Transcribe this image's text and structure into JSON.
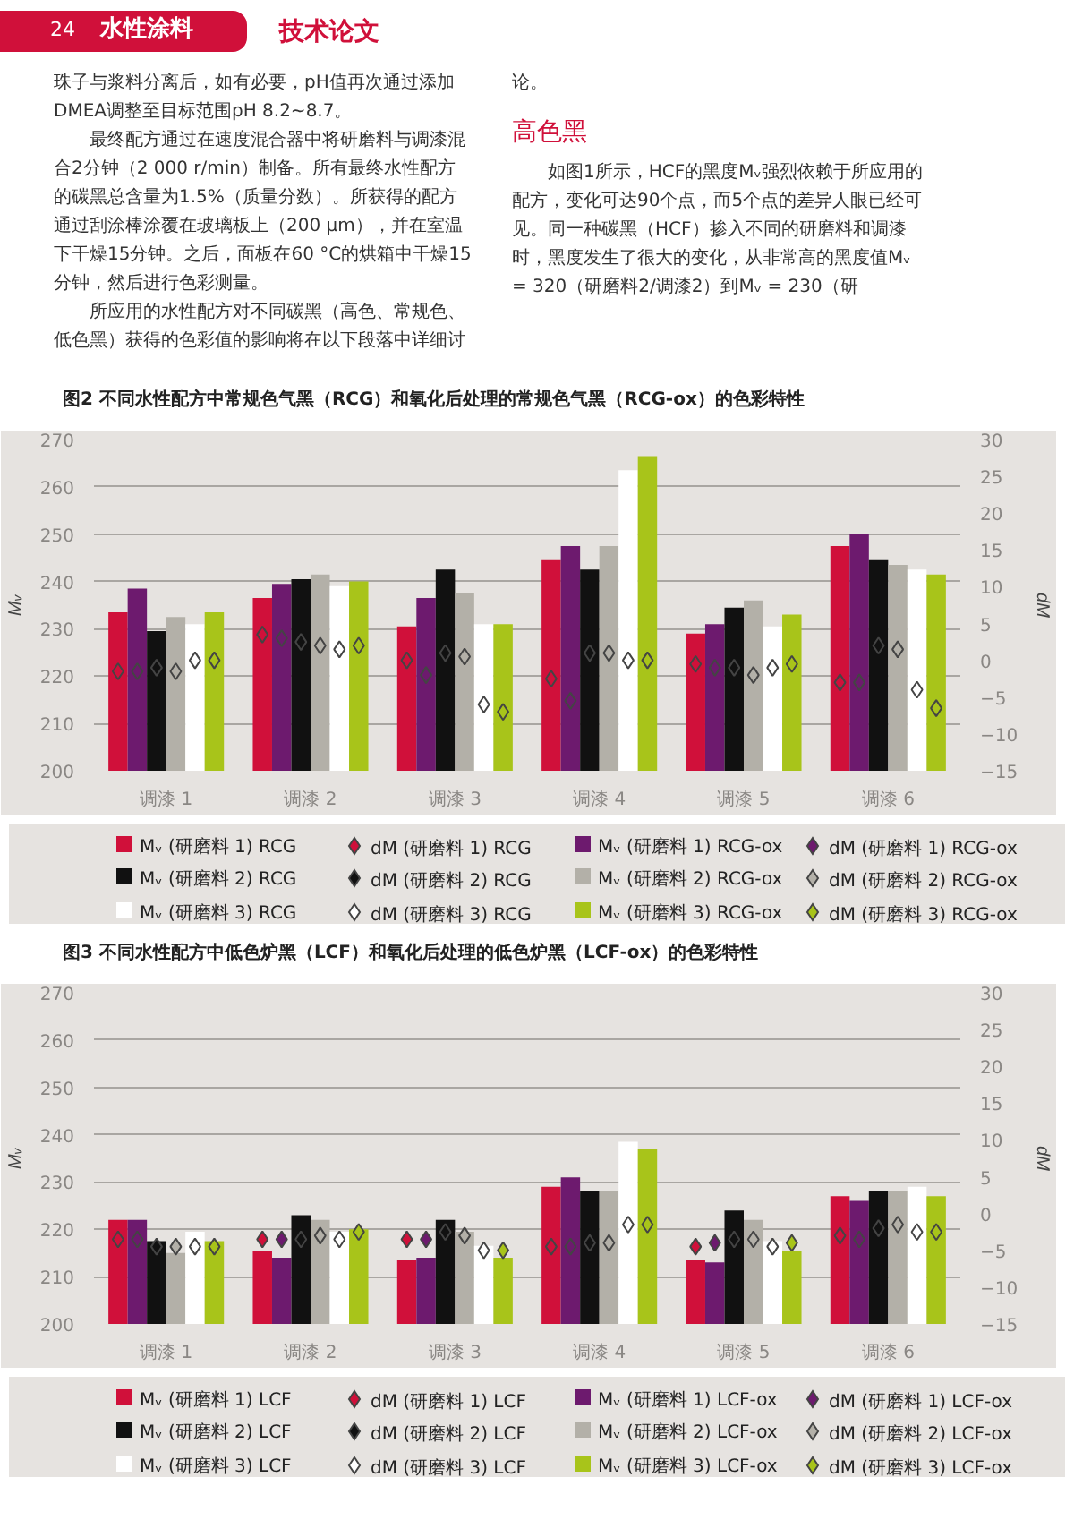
{
  "chart_data": [
    {
      "type": "bar",
      "title": "图2 不同水性配方中常规色气黑（RCG）和氧化后处理的常规色气黑（RCG-ox）的色彩特性",
      "annotations": [
        "24",
        "水性涂料",
        "技术论文",
        "珠子与浆料分离后，如有必要，pH值再次通过添加DMEA调整至目标范围pH 8.2~8.7。",
        "最终配方通过在速度混合器中将研磨料与调漆混合2分钟（2 000 r/min）制备。所有最终水性配方的碳黑总含量为1.5%（质量分数）。所获得的配方通过刮涂棒涂覆在玻璃板上（200 μm），并在室温下干燥15分钟。之后，面板在60 °C的烘箱中干燥15分钟，然后进行色彩测量。",
        "所应用的水性配方对不同碳黑（高色、常规色、低色黑）获得的色彩值的影响将在以下段落中详细讨论。",
        "高色黑",
        "如图1所示，HCF的黑度Mᵥ强烈依赖于所应用的配方，变化可达90个点，而5个点的差异人眼已经可见。同一种碳黑（HCF）掺入不同的研磨料和调漆时，黑度发生了很大的变化，从非常高的黑度值Mᵥ = 320（研磨料2/调漆2）到Mᵥ = 230（研"
      ],
      "categories": [
        "调漆 1",
        "调漆 2",
        "调漆 3",
        "调漆 4",
        "调漆 5",
        "调漆 6"
      ],
      "ylabel": "Mᵥ",
      "y2label": "dM",
      "ylim": [
        200,
        270
      ],
      "yticks": [
        200,
        210,
        220,
        230,
        240,
        250,
        260,
        270
      ],
      "y2lim": [
        -15,
        30
      ],
      "y2ticks": [
        -15,
        -10,
        -5,
        0,
        5,
        10,
        15,
        20,
        25,
        30
      ],
      "grid": "y",
      "legend": "bottom",
      "series": [
        {
          "name": "Mᵥ (研磨料 1) RCG",
          "color": "#d0103a",
          "values": [
            233.5,
            236.5,
            230.5,
            244.5,
            229,
            247.5
          ]
        },
        {
          "name": "dM (研磨料 1) RCG",
          "type": "scatter",
          "axis": "y2",
          "marker": "diamond",
          "color": "#d0103a",
          "values": [
            -1.5,
            3.5,
            0,
            -2.5,
            -0.5,
            -3
          ]
        },
        {
          "name": "Mᵥ (研磨料 1) RCG-ox",
          "color": "#6d1a6e",
          "values": [
            238.5,
            239.5,
            236.5,
            247.5,
            231,
            250
          ]
        },
        {
          "name": "dM (研磨料 1) RCG-ox",
          "type": "scatter",
          "axis": "y2",
          "marker": "diamond",
          "color": "#6d1a6e",
          "values": [
            -1.5,
            3,
            -2,
            -5.5,
            -1,
            -3
          ]
        },
        {
          "name": "Mᵥ (研磨料 2) RCG",
          "color": "#111111",
          "values": [
            229.5,
            240.5,
            242.5,
            242.5,
            234.5,
            244.5
          ]
        },
        {
          "name": "dM (研磨料 2) RCG",
          "type": "scatter",
          "axis": "y2",
          "marker": "diamond",
          "color": "#111111",
          "values": [
            -1,
            2.5,
            1,
            1,
            -1,
            2
          ]
        },
        {
          "name": "Mᵥ (研磨料 2) RCG-ox",
          "color": "#b3b0a8",
          "values": [
            232.5,
            241.5,
            237.5,
            247.5,
            236,
            243.5
          ]
        },
        {
          "name": "dM (研磨料 2) RCG-ox",
          "type": "scatter",
          "axis": "y2",
          "marker": "diamond",
          "color": "#b3b0a8",
          "values": [
            -1.5,
            2,
            0.5,
            1,
            -2,
            1.5
          ]
        },
        {
          "name": "Mᵥ (研磨料 3) RCG",
          "color": "#ffffff",
          "values": [
            231,
            239,
            231,
            263.5,
            230.5,
            242.5
          ]
        },
        {
          "name": "dM (研磨料 3) RCG",
          "type": "scatter",
          "axis": "y2",
          "marker": "diamond",
          "color": "#ffffff",
          "values": [
            0,
            1.5,
            -6,
            0,
            -1,
            -4
          ]
        },
        {
          "name": "Mᵥ (研磨料 3) RCG-ox",
          "color": "#a8c41a",
          "values": [
            233.5,
            240,
            231,
            266.5,
            233,
            241.5
          ]
        },
        {
          "name": "dM (研磨料 3) RCG-ox",
          "type": "scatter",
          "axis": "y2",
          "marker": "diamond",
          "color": "#a8c41a",
          "values": [
            0,
            2,
            -7,
            0,
            -0.5,
            -6.5
          ]
        }
      ]
    },
    {
      "type": "bar",
      "title": "图3 不同水性配方中低色炉黑（LCF）和氧化后处理的低色炉黑（LCF-ox）的色彩特性",
      "categories": [
        "调漆 1",
        "调漆 2",
        "调漆 3",
        "调漆 4",
        "调漆 5",
        "调漆 6"
      ],
      "ylabel": "Mᵥ",
      "y2label": "dM",
      "ylim": [
        200,
        270
      ],
      "yticks": [
        200,
        210,
        220,
        230,
        240,
        250,
        260,
        270
      ],
      "y2lim": [
        -15,
        30
      ],
      "y2ticks": [
        -15,
        -10,
        -5,
        0,
        5,
        10,
        15,
        20,
        25,
        30
      ],
      "grid": "y",
      "legend": "bottom",
      "series": [
        {
          "name": "Mᵥ (研磨料 1) LCF",
          "color": "#d0103a",
          "values": [
            222,
            215.5,
            213.5,
            229,
            213.5,
            227
          ]
        },
        {
          "name": "dM (研磨料 1) LCF",
          "type": "scatter",
          "axis": "y2",
          "marker": "diamond",
          "color": "#d0103a",
          "values": [
            -3.5,
            -3.5,
            -3.5,
            -4.5,
            -4.5,
            -3
          ]
        },
        {
          "name": "Mᵥ (研磨料 1) LCF-ox",
          "color": "#6d1a6e",
          "values": [
            222,
            214,
            214,
            231,
            213,
            226
          ]
        },
        {
          "name": "dM (研磨料 1) LCF-ox",
          "type": "scatter",
          "axis": "y2",
          "marker": "diamond",
          "color": "#6d1a6e",
          "values": [
            -3.5,
            -3.5,
            -3.5,
            -4.5,
            -4,
            -3.5
          ]
        },
        {
          "name": "Mᵥ (研磨料 2) LCF",
          "color": "#111111",
          "values": [
            217.5,
            223,
            222,
            228,
            224,
            228
          ]
        },
        {
          "name": "dM (研磨料 2) LCF",
          "type": "scatter",
          "axis": "y2",
          "marker": "diamond",
          "color": "#111111",
          "values": [
            -4.5,
            -3.5,
            -2.5,
            -4,
            -3.5,
            -2
          ]
        },
        {
          "name": "Mᵥ (研磨料 2) LCF-ox",
          "color": "#b3b0a8",
          "values": [
            215,
            222,
            219.5,
            228,
            222,
            228
          ]
        },
        {
          "name": "dM (研磨料 2) LCF-ox",
          "type": "scatter",
          "axis": "y2",
          "marker": "diamond",
          "color": "#b3b0a8",
          "values": [
            -4.5,
            -3,
            -3,
            -4,
            -3.5,
            -1.5
          ]
        },
        {
          "name": "Mᵥ (研磨料 3) LCF",
          "color": "#ffffff",
          "values": [
            219.5,
            219.5,
            216.5,
            238.5,
            217.5,
            229
          ]
        },
        {
          "name": "dM (研磨料 3) LCF",
          "type": "scatter",
          "axis": "y2",
          "marker": "diamond",
          "color": "#ffffff",
          "values": [
            -4.5,
            -3.5,
            -5,
            -1.5,
            -4.5,
            -2.5
          ]
        },
        {
          "name": "Mᵥ (研磨料 3) LCF-ox",
          "color": "#a8c41a",
          "values": [
            217.5,
            220,
            214,
            237,
            215.5,
            227
          ]
        },
        {
          "name": "dM (研磨料 3) LCF-ox",
          "type": "scatter",
          "axis": "y2",
          "marker": "diamond",
          "color": "#a8c41a",
          "values": [
            -4.5,
            -2.5,
            -5,
            -1.5,
            -4,
            -2.5
          ]
        }
      ]
    }
  ]
}
